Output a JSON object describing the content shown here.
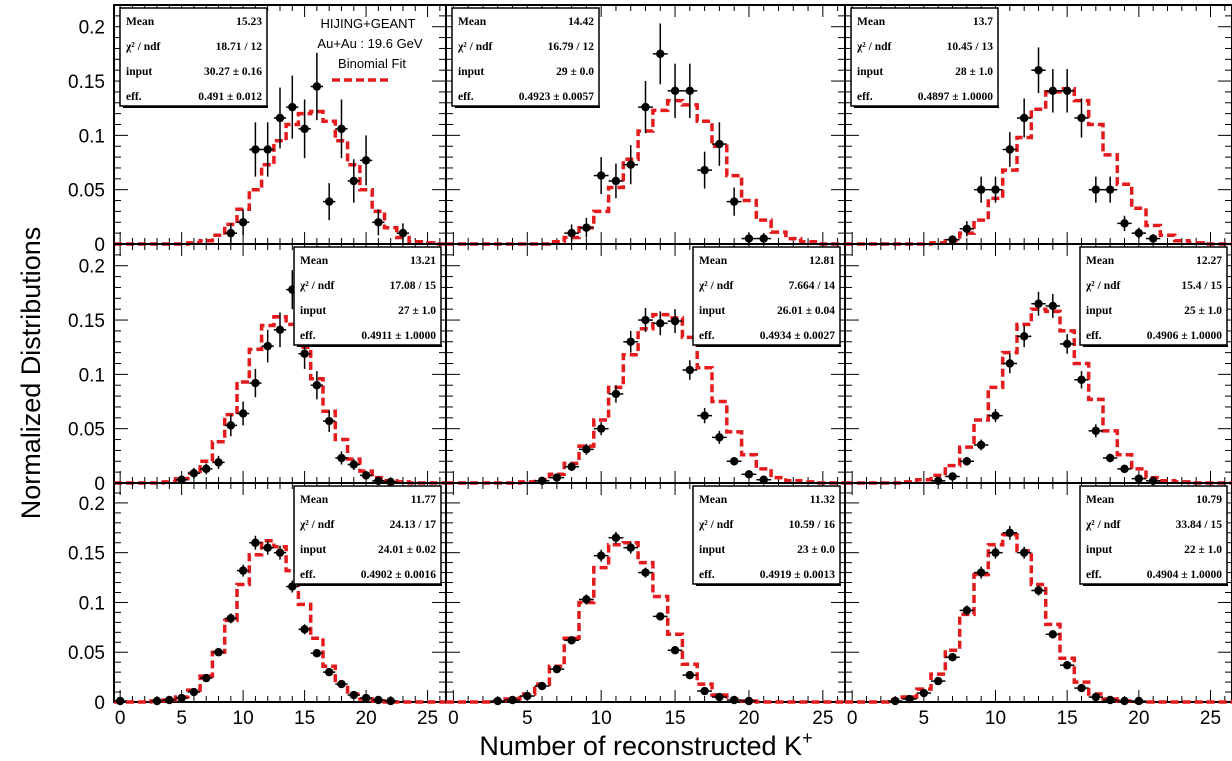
{
  "figure": {
    "ylabel": "Normalized Distributions",
    "xlabel_main": "Number of reconstructed K",
    "xlabel_sup": "+",
    "x_ticks": [
      "0",
      "5",
      "10",
      "15",
      "20",
      "25"
    ],
    "y_ticks": [
      "0",
      "0.05",
      "0.1",
      "0.15",
      "0.2"
    ],
    "annotation": {
      "line1": "HIJING+GEANT",
      "line2": "Au+Au : 19.6 GeV",
      "legend_label": "Binomial Fit",
      "fit_color": "#e41a1c"
    },
    "data_color": "#000000"
  },
  "chart_data": [
    {
      "type": "scatter",
      "xlim": [
        -0.5,
        26.5
      ],
      "ylim": [
        0,
        0.22
      ],
      "stats": {
        "mean": "15.23",
        "chi2": "18.71 / 12",
        "input": "30.27 ± 0.16",
        "eff": "0.491 ± 0.012"
      },
      "stats_pos": "top-left",
      "points": [
        {
          "x": 9,
          "y": 0.01,
          "err": 0.009
        },
        {
          "x": 10,
          "y": 0.02,
          "err": 0.012
        },
        {
          "x": 11,
          "y": 0.087,
          "err": 0.025
        },
        {
          "x": 12,
          "y": 0.087,
          "err": 0.025
        },
        {
          "x": 13,
          "y": 0.116,
          "err": 0.028
        },
        {
          "x": 14,
          "y": 0.126,
          "err": 0.029
        },
        {
          "x": 15,
          "y": 0.106,
          "err": 0.027
        },
        {
          "x": 16,
          "y": 0.145,
          "err": 0.031
        },
        {
          "x": 17,
          "y": 0.039,
          "err": 0.017
        },
        {
          "x": 18,
          "y": 0.106,
          "err": 0.027
        },
        {
          "x": 19,
          "y": 0.058,
          "err": 0.02
        },
        {
          "x": 20,
          "y": 0.077,
          "err": 0.023
        },
        {
          "x": 21,
          "y": 0.02,
          "err": 0.012
        },
        {
          "x": 23,
          "y": 0.01,
          "err": 0.009
        }
      ],
      "fit": [
        0,
        0,
        0,
        0,
        0,
        0,
        0.001,
        0.003,
        0.008,
        0.018,
        0.032,
        0.05,
        0.073,
        0.095,
        0.11,
        0.12,
        0.122,
        0.113,
        0.095,
        0.073,
        0.05,
        0.03,
        0.015,
        0.006,
        0.002,
        0.001,
        0
      ]
    },
    {
      "type": "scatter",
      "xlim": [
        -0.5,
        26.5
      ],
      "ylim": [
        0,
        0.22
      ],
      "stats": {
        "mean": "14.42",
        "chi2": "16.79 / 12",
        "input": "29 ± 0.0",
        "eff": "0.4923 ± 0.0057"
      },
      "stats_pos": "top-left",
      "points": [
        {
          "x": 8,
          "y": 0.01,
          "err": 0.008
        },
        {
          "x": 9,
          "y": 0.015,
          "err": 0.009
        },
        {
          "x": 10,
          "y": 0.063,
          "err": 0.017
        },
        {
          "x": 11,
          "y": 0.058,
          "err": 0.016
        },
        {
          "x": 12,
          "y": 0.073,
          "err": 0.018
        },
        {
          "x": 13,
          "y": 0.126,
          "err": 0.024
        },
        {
          "x": 14,
          "y": 0.175,
          "err": 0.028
        },
        {
          "x": 15,
          "y": 0.141,
          "err": 0.025
        },
        {
          "x": 16,
          "y": 0.141,
          "err": 0.025
        },
        {
          "x": 17,
          "y": 0.068,
          "err": 0.017
        },
        {
          "x": 18,
          "y": 0.092,
          "err": 0.02
        },
        {
          "x": 19,
          "y": 0.039,
          "err": 0.013
        },
        {
          "x": 20,
          "y": 0.005,
          "err": 0.005
        },
        {
          "x": 21,
          "y": 0.005,
          "err": 0.005
        }
      ],
      "fit": [
        0,
        0,
        0,
        0,
        0,
        0,
        0,
        0.002,
        0.006,
        0.015,
        0.03,
        0.052,
        0.078,
        0.104,
        0.123,
        0.132,
        0.128,
        0.113,
        0.09,
        0.063,
        0.04,
        0.022,
        0.011,
        0.005,
        0.002,
        0,
        0
      ]
    },
    {
      "type": "scatter",
      "xlim": [
        -0.5,
        26.5
      ],
      "ylim": [
        0,
        0.22
      ],
      "stats": {
        "mean": "13.7",
        "chi2": "10.45 / 13",
        "input": "28 ± 1.0",
        "eff": "0.4897 ± 1.0000"
      },
      "stats_pos": "top-left",
      "points": [
        {
          "x": 7,
          "y": 0.004,
          "err": 0.004
        },
        {
          "x": 8,
          "y": 0.014,
          "err": 0.007
        },
        {
          "x": 9,
          "y": 0.05,
          "err": 0.012
        },
        {
          "x": 10,
          "y": 0.05,
          "err": 0.012
        },
        {
          "x": 11,
          "y": 0.087,
          "err": 0.016
        },
        {
          "x": 12,
          "y": 0.116,
          "err": 0.018
        },
        {
          "x": 13,
          "y": 0.16,
          "err": 0.021
        },
        {
          "x": 14,
          "y": 0.141,
          "err": 0.02
        },
        {
          "x": 15,
          "y": 0.141,
          "err": 0.02
        },
        {
          "x": 16,
          "y": 0.116,
          "err": 0.018
        },
        {
          "x": 17,
          "y": 0.05,
          "err": 0.012
        },
        {
          "x": 18,
          "y": 0.05,
          "err": 0.012
        },
        {
          "x": 19,
          "y": 0.019,
          "err": 0.007
        },
        {
          "x": 20,
          "y": 0.01,
          "err": 0.005
        },
        {
          "x": 21,
          "y": 0.005,
          "err": 0.004
        }
      ],
      "fit": [
        0,
        0,
        0,
        0,
        0,
        0,
        0.001,
        0.003,
        0.01,
        0.022,
        0.042,
        0.068,
        0.098,
        0.124,
        0.14,
        0.143,
        0.132,
        0.11,
        0.082,
        0.055,
        0.033,
        0.017,
        0.008,
        0.003,
        0.001,
        0,
        0
      ]
    },
    {
      "type": "scatter",
      "xlim": [
        -0.5,
        26.5
      ],
      "ylim": [
        0,
        0.22
      ],
      "stats": {
        "mean": "13.21",
        "chi2": "17.08 / 15",
        "input": "27 ± 1.0",
        "eff": "0.4911 ± 1.0000"
      },
      "stats_pos": "top-right",
      "points": [
        {
          "x": 5,
          "y": 0.003,
          "err": 0.003
        },
        {
          "x": 6,
          "y": 0.009,
          "err": 0.005
        },
        {
          "x": 7,
          "y": 0.013,
          "err": 0.005
        },
        {
          "x": 8,
          "y": 0.019,
          "err": 0.006
        },
        {
          "x": 9,
          "y": 0.053,
          "err": 0.01
        },
        {
          "x": 10,
          "y": 0.064,
          "err": 0.011
        },
        {
          "x": 11,
          "y": 0.092,
          "err": 0.013
        },
        {
          "x": 12,
          "y": 0.126,
          "err": 0.015
        },
        {
          "x": 13,
          "y": 0.141,
          "err": 0.016
        },
        {
          "x": 14,
          "y": 0.178,
          "err": 0.018
        },
        {
          "x": 15,
          "y": 0.119,
          "err": 0.014
        },
        {
          "x": 16,
          "y": 0.09,
          "err": 0.013
        },
        {
          "x": 17,
          "y": 0.057,
          "err": 0.01
        },
        {
          "x": 18,
          "y": 0.023,
          "err": 0.006
        },
        {
          "x": 19,
          "y": 0.017,
          "err": 0.005
        },
        {
          "x": 20,
          "y": 0.007,
          "err": 0.004
        },
        {
          "x": 21,
          "y": 0.002,
          "err": 0.002
        },
        {
          "x": 22,
          "y": 0.001,
          "err": 0.001
        }
      ],
      "fit": [
        0,
        0,
        0,
        0,
        0.001,
        0.004,
        0.009,
        0.02,
        0.038,
        0.063,
        0.093,
        0.123,
        0.145,
        0.153,
        0.146,
        0.125,
        0.096,
        0.066,
        0.04,
        0.022,
        0.011,
        0.005,
        0.002,
        0.001,
        0,
        0,
        0
      ]
    },
    {
      "type": "scatter",
      "xlim": [
        -0.5,
        26.5
      ],
      "ylim": [
        0,
        0.22
      ],
      "stats": {
        "mean": "12.81",
        "chi2": "7.664 / 14",
        "input": "26.01 ± 0.04",
        "eff": "0.4934 ± 0.0027"
      },
      "stats_pos": "top-right",
      "points": [
        {
          "x": 6,
          "y": 0.002,
          "err": 0.002
        },
        {
          "x": 7,
          "y": 0.005,
          "err": 0.003
        },
        {
          "x": 8,
          "y": 0.015,
          "err": 0.004
        },
        {
          "x": 9,
          "y": 0.031,
          "err": 0.005
        },
        {
          "x": 10,
          "y": 0.05,
          "err": 0.006
        },
        {
          "x": 11,
          "y": 0.082,
          "err": 0.008
        },
        {
          "x": 12,
          "y": 0.13,
          "err": 0.01
        },
        {
          "x": 13,
          "y": 0.15,
          "err": 0.011
        },
        {
          "x": 14,
          "y": 0.147,
          "err": 0.011
        },
        {
          "x": 15,
          "y": 0.149,
          "err": 0.011
        },
        {
          "x": 16,
          "y": 0.104,
          "err": 0.009
        },
        {
          "x": 17,
          "y": 0.062,
          "err": 0.007
        },
        {
          "x": 18,
          "y": 0.042,
          "err": 0.006
        },
        {
          "x": 19,
          "y": 0.02,
          "err": 0.004
        },
        {
          "x": 20,
          "y": 0.008,
          "err": 0.003
        },
        {
          "x": 21,
          "y": 0.003,
          "err": 0.002
        }
      ],
      "fit": [
        0,
        0,
        0,
        0,
        0,
        0.001,
        0.003,
        0.008,
        0.018,
        0.034,
        0.058,
        0.088,
        0.118,
        0.142,
        0.155,
        0.152,
        0.134,
        0.106,
        0.075,
        0.047,
        0.026,
        0.013,
        0.005,
        0.002,
        0.001,
        0,
        0
      ]
    },
    {
      "type": "scatter",
      "xlim": [
        -0.5,
        26.5
      ],
      "ylim": [
        0,
        0.22
      ],
      "stats": {
        "mean": "12.27",
        "chi2": "15.4 / 15",
        "input": "25 ± 1.0",
        "eff": "0.4906 ± 1.0000"
      },
      "stats_pos": "top-right",
      "points": [
        {
          "x": 6,
          "y": 0.002,
          "err": 0.002
        },
        {
          "x": 7,
          "y": 0.006,
          "err": 0.003
        },
        {
          "x": 8,
          "y": 0.02,
          "err": 0.004
        },
        {
          "x": 9,
          "y": 0.035,
          "err": 0.005
        },
        {
          "x": 10,
          "y": 0.062,
          "err": 0.006
        },
        {
          "x": 11,
          "y": 0.11,
          "err": 0.009
        },
        {
          "x": 12,
          "y": 0.135,
          "err": 0.01
        },
        {
          "x": 13,
          "y": 0.165,
          "err": 0.011
        },
        {
          "x": 14,
          "y": 0.163,
          "err": 0.011
        },
        {
          "x": 15,
          "y": 0.128,
          "err": 0.009
        },
        {
          "x": 16,
          "y": 0.095,
          "err": 0.008
        },
        {
          "x": 17,
          "y": 0.048,
          "err": 0.006
        },
        {
          "x": 18,
          "y": 0.023,
          "err": 0.004
        },
        {
          "x": 19,
          "y": 0.013,
          "err": 0.003
        },
        {
          "x": 20,
          "y": 0.004,
          "err": 0.002
        },
        {
          "x": 21,
          "y": 0.002,
          "err": 0.002
        }
      ],
      "fit": [
        0,
        0,
        0,
        0,
        0.001,
        0.003,
        0.007,
        0.016,
        0.033,
        0.058,
        0.088,
        0.12,
        0.146,
        0.16,
        0.158,
        0.14,
        0.11,
        0.077,
        0.048,
        0.026,
        0.013,
        0.005,
        0.002,
        0.001,
        0,
        0,
        0
      ]
    },
    {
      "type": "scatter",
      "xlim": [
        -0.5,
        26.5
      ],
      "ylim": [
        0,
        0.22
      ],
      "stats": {
        "mean": "11.77",
        "chi2": "24.13 / 17",
        "input": "24.01 ± 0.02",
        "eff": "0.4902 ± 0.0016"
      },
      "stats_pos": "top-right",
      "points": [
        {
          "x": 0,
          "y": 0.001,
          "err": 0.001
        },
        {
          "x": 3,
          "y": 0.001,
          "err": 0.001
        },
        {
          "x": 4,
          "y": 0.002,
          "err": 0.001
        },
        {
          "x": 5,
          "y": 0.004,
          "err": 0.001
        },
        {
          "x": 6,
          "y": 0.01,
          "err": 0.002
        },
        {
          "x": 7,
          "y": 0.024,
          "err": 0.003
        },
        {
          "x": 8,
          "y": 0.05,
          "err": 0.004
        },
        {
          "x": 9,
          "y": 0.084,
          "err": 0.005
        },
        {
          "x": 10,
          "y": 0.132,
          "err": 0.006
        },
        {
          "x": 11,
          "y": 0.16,
          "err": 0.007
        },
        {
          "x": 12,
          "y": 0.155,
          "err": 0.007
        },
        {
          "x": 13,
          "y": 0.15,
          "err": 0.007
        },
        {
          "x": 14,
          "y": 0.116,
          "err": 0.006
        },
        {
          "x": 15,
          "y": 0.073,
          "err": 0.005
        },
        {
          "x": 16,
          "y": 0.049,
          "err": 0.004
        },
        {
          "x": 17,
          "y": 0.03,
          "err": 0.003
        },
        {
          "x": 18,
          "y": 0.018,
          "err": 0.002
        },
        {
          "x": 19,
          "y": 0.007,
          "err": 0.002
        },
        {
          "x": 20,
          "y": 0.004,
          "err": 0.001
        },
        {
          "x": 21,
          "y": 0.002,
          "err": 0.001
        },
        {
          "x": 22,
          "y": 0.001,
          "err": 0.001
        }
      ],
      "fit": [
        0,
        0,
        0,
        0.001,
        0.002,
        0.005,
        0.012,
        0.026,
        0.05,
        0.082,
        0.118,
        0.148,
        0.162,
        0.156,
        0.132,
        0.098,
        0.064,
        0.036,
        0.018,
        0.008,
        0.003,
        0.001,
        0,
        0,
        0,
        0,
        0
      ]
    },
    {
      "type": "scatter",
      "xlim": [
        -0.5,
        26.5
      ],
      "ylim": [
        0,
        0.22
      ],
      "stats": {
        "mean": "11.32",
        "chi2": "10.59 / 16",
        "input": "23 ± 0.0",
        "eff": "0.4919 ± 0.0013"
      },
      "stats_pos": "top-right",
      "points": [
        {
          "x": 3,
          "y": 0.001,
          "err": 0.001
        },
        {
          "x": 4,
          "y": 0.002,
          "err": 0.001
        },
        {
          "x": 5,
          "y": 0.006,
          "err": 0.001
        },
        {
          "x": 6,
          "y": 0.016,
          "err": 0.002
        },
        {
          "x": 7,
          "y": 0.033,
          "err": 0.003
        },
        {
          "x": 8,
          "y": 0.062,
          "err": 0.004
        },
        {
          "x": 9,
          "y": 0.103,
          "err": 0.005
        },
        {
          "x": 10,
          "y": 0.147,
          "err": 0.006
        },
        {
          "x": 11,
          "y": 0.165,
          "err": 0.006
        },
        {
          "x": 12,
          "y": 0.155,
          "err": 0.006
        },
        {
          "x": 13,
          "y": 0.13,
          "err": 0.005
        },
        {
          "x": 14,
          "y": 0.086,
          "err": 0.004
        },
        {
          "x": 15,
          "y": 0.052,
          "err": 0.003
        },
        {
          "x": 16,
          "y": 0.027,
          "err": 0.002
        },
        {
          "x": 17,
          "y": 0.011,
          "err": 0.002
        },
        {
          "x": 18,
          "y": 0.005,
          "err": 0.001
        },
        {
          "x": 19,
          "y": 0.002,
          "err": 0.001
        },
        {
          "x": 20,
          "y": 0.001,
          "err": 0.001
        }
      ],
      "fit": [
        0,
        0,
        0,
        0.001,
        0.003,
        0.008,
        0.018,
        0.036,
        0.064,
        0.1,
        0.135,
        0.158,
        0.16,
        0.14,
        0.106,
        0.068,
        0.038,
        0.018,
        0.007,
        0.003,
        0.001,
        0,
        0,
        0,
        0,
        0,
        0
      ]
    },
    {
      "type": "scatter",
      "xlim": [
        -0.5,
        26.5
      ],
      "ylim": [
        0,
        0.22
      ],
      "stats": {
        "mean": "10.79",
        "chi2": "33.84 / 15",
        "input": "22 ± 1.0",
        "eff": "0.4904 ± 1.0000"
      },
      "stats_pos": "top-right",
      "points": [
        {
          "x": 3,
          "y": 0.001,
          "err": 0.001
        },
        {
          "x": 4,
          "y": 0.003,
          "err": 0.001
        },
        {
          "x": 5,
          "y": 0.009,
          "err": 0.002
        },
        {
          "x": 6,
          "y": 0.021,
          "err": 0.003
        },
        {
          "x": 7,
          "y": 0.045,
          "err": 0.004
        },
        {
          "x": 8,
          "y": 0.092,
          "err": 0.005
        },
        {
          "x": 9,
          "y": 0.13,
          "err": 0.006
        },
        {
          "x": 10,
          "y": 0.15,
          "err": 0.006
        },
        {
          "x": 11,
          "y": 0.17,
          "err": 0.007
        },
        {
          "x": 12,
          "y": 0.15,
          "err": 0.006
        },
        {
          "x": 13,
          "y": 0.112,
          "err": 0.005
        },
        {
          "x": 14,
          "y": 0.068,
          "err": 0.004
        },
        {
          "x": 15,
          "y": 0.037,
          "err": 0.003
        },
        {
          "x": 16,
          "y": 0.014,
          "err": 0.002
        },
        {
          "x": 17,
          "y": 0.005,
          "err": 0.001
        },
        {
          "x": 18,
          "y": 0.002,
          "err": 0.001
        },
        {
          "x": 19,
          "y": 0.001,
          "err": 0.001
        },
        {
          "x": 20,
          "y": 0.001,
          "err": 0.001
        }
      ],
      "fit": [
        0,
        0,
        0,
        0.002,
        0.005,
        0.013,
        0.028,
        0.052,
        0.088,
        0.128,
        0.158,
        0.168,
        0.152,
        0.118,
        0.078,
        0.044,
        0.02,
        0.008,
        0.003,
        0.001,
        0,
        0,
        0,
        0,
        0,
        0,
        0
      ]
    }
  ]
}
